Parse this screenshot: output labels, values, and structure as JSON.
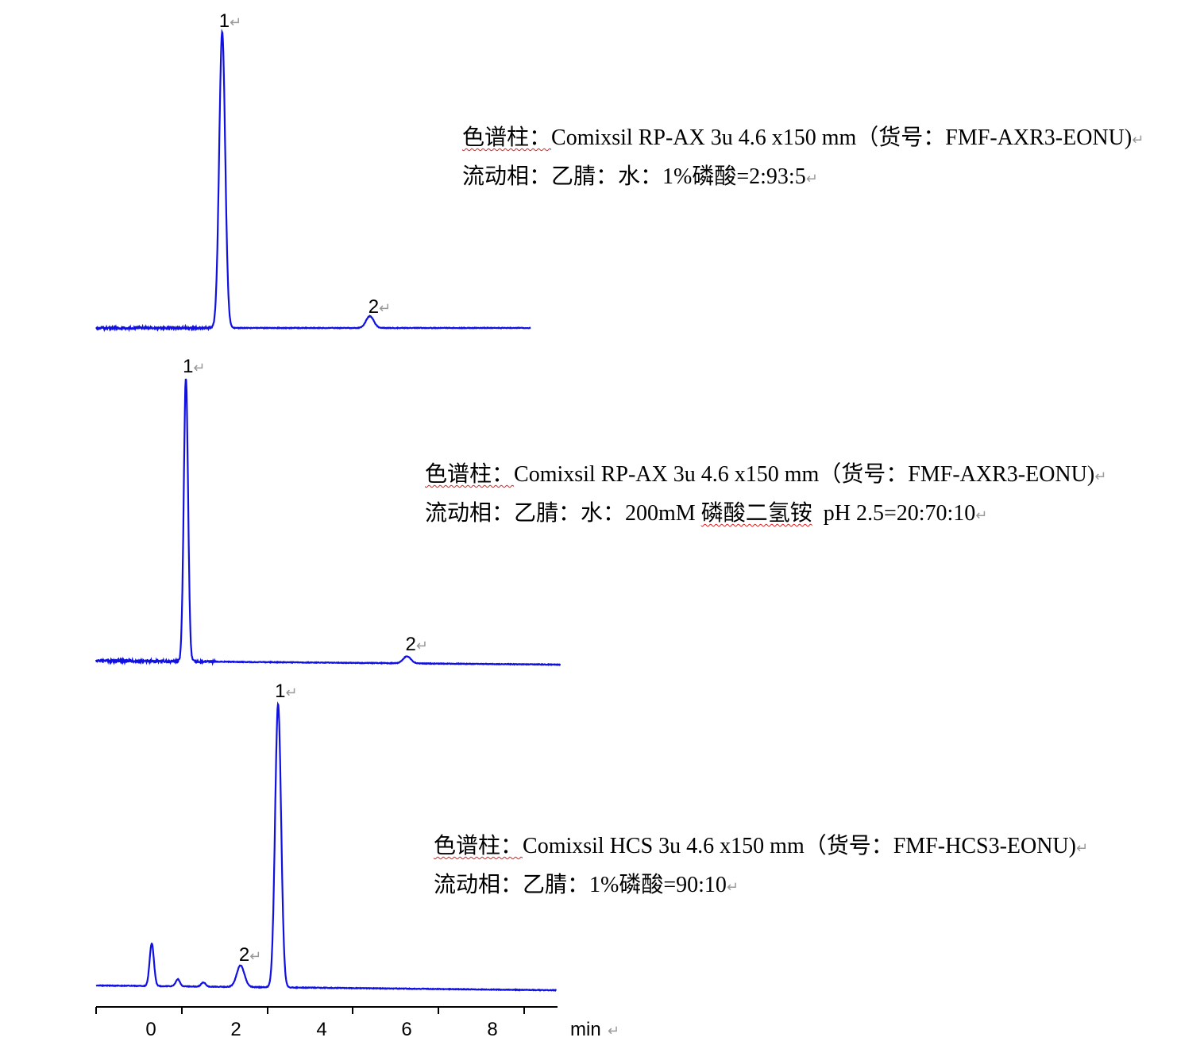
{
  "chart_data": {
    "type": "line",
    "xlabel": "min",
    "x_ticks": [
      "0",
      "2",
      "4",
      "6",
      "8"
    ],
    "xlim": [
      -1.3,
      9.5
    ],
    "trace_color": "#1010e0",
    "paragraph_mark": "↵",
    "panels": [
      {
        "column_label": "色谱柱：",
        "column_name": "Comixsil RP-AX 3u 4.6 x150 mm（货号：FMF-AXR3-EONU)",
        "phase_label": "流动相：",
        "phase_text": "乙腈：水：1%磷酸=2:93:5",
        "x_end": 8.9,
        "peaks": [
          {
            "label": "1",
            "rt": 1.67,
            "rel_height": 1.0
          },
          {
            "label": "2",
            "rt": 5.13,
            "rel_height": 0.04
          }
        ]
      },
      {
        "column_label": "色谱柱：",
        "column_name": "Comixsil RP-AX 3u 4.6 x150 mm（货号：FMF-AXR3-EONU)",
        "phase_label": "流动相：",
        "phase_text_a": "乙腈：水：200mM ",
        "phase_text_b": "磷酸二氢铵",
        "phase_text_c": "  pH 2.5=20:70:10",
        "x_end": 9.6,
        "peaks": [
          {
            "label": "1",
            "rt": 0.82,
            "rel_height": 1.0
          },
          {
            "label": "2",
            "rt": 6.0,
            "rel_height": 0.025
          }
        ]
      },
      {
        "column_label": "色谱柱：",
        "column_name": "Comixsil HCS 3u 4.6 x150 mm（货号：FMF-HCS3-EONU)",
        "phase_label": "流动相：",
        "phase_text": "乙腈：1%磷酸=90:10",
        "x_end": 9.5,
        "peaks": [
          {
            "label": "1",
            "rt": 2.98,
            "rel_height": 1.0
          },
          {
            "label": "2",
            "rt": 2.1,
            "rel_height": 0.076
          }
        ],
        "minor_peaks": [
          {
            "rt": 0.02,
            "rel_height": 0.15
          },
          {
            "rt": 0.63,
            "rel_height": 0.025
          },
          {
            "rt": 1.23,
            "rel_height": 0.015
          }
        ]
      }
    ]
  }
}
